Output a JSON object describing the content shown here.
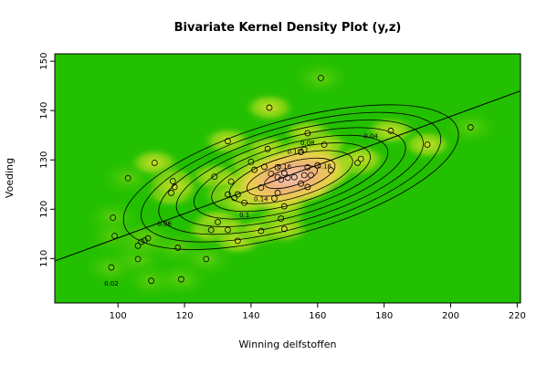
{
  "chart_data": {
    "type": "contour",
    "title": "Bivariate Kernel Density Plot (y,z)",
    "xlabel": "Winning delfstoffen",
    "ylabel": "Voeding",
    "xlim": [
      81,
      221
    ],
    "ylim": [
      101,
      151.5
    ],
    "x_ticks": [
      100,
      120,
      140,
      160,
      180,
      200,
      220
    ],
    "y_ticks": [
      110,
      120,
      130,
      140,
      150
    ],
    "colors": {
      "low": "#22c000",
      "mid": "#f0d040",
      "high": "#f0b8b0",
      "line": "#000000",
      "point": "#000000"
    },
    "regression_line": {
      "x": [
        81,
        221
      ],
      "y": [
        109.5,
        144
      ]
    },
    "contour_labels": [
      {
        "text": "0.02",
        "x": 98,
        "y": 104.5
      },
      {
        "text": "0.04",
        "x": 176,
        "y": 134.4
      },
      {
        "text": "0.06",
        "x": 114,
        "y": 116.6
      },
      {
        "text": "0.08",
        "x": 157,
        "y": 133
      },
      {
        "text": "0.1",
        "x": 138,
        "y": 118.4
      },
      {
        "text": "0.12",
        "x": 153,
        "y": 131.2
      },
      {
        "text": "0.14",
        "x": 143,
        "y": 121.6
      },
      {
        "text": "0.16",
        "x": 150,
        "y": 128.2
      },
      {
        "text": "0.18",
        "x": 162,
        "y": 128.3
      }
    ],
    "points": [
      [
        98,
        108.2
      ],
      [
        98.5,
        118.3
      ],
      [
        99,
        114.6
      ],
      [
        103,
        126.3
      ],
      [
        106,
        112.6
      ],
      [
        106,
        109.9
      ],
      [
        107,
        113.4
      ],
      [
        108,
        113.7
      ],
      [
        109,
        114.1
      ],
      [
        110,
        105.5
      ],
      [
        111,
        129.4
      ],
      [
        116,
        123.3
      ],
      [
        116.5,
        125.7
      ],
      [
        117,
        124.5
      ],
      [
        118,
        112.2
      ],
      [
        119,
        105.8
      ],
      [
        126.5,
        109.9
      ],
      [
        128,
        115.8
      ],
      [
        129,
        126.6
      ],
      [
        130,
        117.4
      ],
      [
        133,
        123
      ],
      [
        133,
        133.8
      ],
      [
        133,
        115.8
      ],
      [
        134,
        125.6
      ],
      [
        135,
        122.3
      ],
      [
        136,
        123
      ],
      [
        136,
        113.6
      ],
      [
        138,
        121.3
      ],
      [
        140,
        129.6
      ],
      [
        141,
        128
      ],
      [
        143,
        124.4
      ],
      [
        143,
        115.6
      ],
      [
        144,
        128.6
      ],
      [
        145,
        132.2
      ],
      [
        145.5,
        140.6
      ],
      [
        146,
        127.2
      ],
      [
        147,
        122.2
      ],
      [
        148,
        126.5
      ],
      [
        148,
        128.5
      ],
      [
        148,
        123.3
      ],
      [
        149,
        126
      ],
      [
        149,
        118.1
      ],
      [
        150,
        127.3
      ],
      [
        150,
        116
      ],
      [
        150,
        120.6
      ],
      [
        151,
        126.4
      ],
      [
        153,
        126.5
      ],
      [
        155,
        125.2
      ],
      [
        155,
        131.6
      ],
      [
        156,
        132.1
      ],
      [
        156,
        126.9
      ],
      [
        157,
        124.5
      ],
      [
        157,
        128.5
      ],
      [
        157,
        135.4
      ],
      [
        158,
        126.9
      ],
      [
        160,
        128.9
      ],
      [
        161,
        146.6
      ],
      [
        162,
        133.1
      ],
      [
        164,
        127.9
      ],
      [
        172,
        129.4
      ],
      [
        173,
        130.2
      ],
      [
        182,
        135.9
      ],
      [
        193,
        133.1
      ],
      [
        206,
        136.6
      ]
    ]
  }
}
